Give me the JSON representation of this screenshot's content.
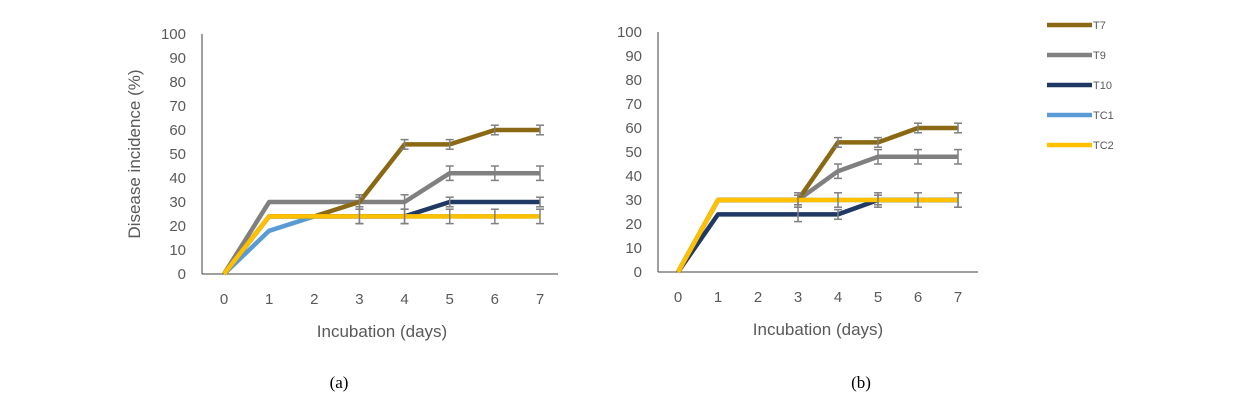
{
  "chart_data": [
    {
      "type": "line",
      "caption_label": "a",
      "xlabel": "Incubation (days)",
      "ylabel": "Disease incidence (%)",
      "x": [
        0,
        1,
        2,
        3,
        4,
        5,
        6,
        7
      ],
      "xlim": [
        0,
        7
      ],
      "ylim": [
        0,
        100
      ],
      "yticks": [
        0,
        10,
        20,
        30,
        40,
        50,
        60,
        70,
        80,
        90,
        100
      ],
      "grid": false,
      "series": [
        {
          "name": "TC1",
          "values": [
            0,
            18,
            24,
            24,
            24,
            24,
            24,
            24
          ],
          "error": [
            0,
            0,
            0,
            0,
            0,
            0,
            0,
            0
          ]
        },
        {
          "name": "T10",
          "values": [
            0,
            24,
            24,
            24,
            24,
            30,
            30,
            30
          ],
          "error": [
            0,
            0,
            0,
            3,
            3,
            2,
            0,
            2
          ]
        },
        {
          "name": "T9",
          "values": [
            0,
            30,
            30,
            30,
            30,
            42,
            42,
            42
          ],
          "error": [
            0,
            0,
            0,
            3,
            3,
            3,
            3,
            3
          ]
        },
        {
          "name": "T7",
          "values": [
            0,
            24,
            24,
            30,
            54,
            54,
            60,
            60
          ],
          "error": [
            0,
            0,
            0,
            2,
            2,
            2,
            2,
            2
          ]
        },
        {
          "name": "TC2",
          "values": [
            0,
            24,
            24,
            24,
            24,
            24,
            24,
            24
          ],
          "error": [
            0,
            0,
            0,
            3,
            3,
            3,
            3,
            3
          ]
        }
      ]
    },
    {
      "type": "line",
      "caption_label": "b",
      "xlabel": "Incubation (days)",
      "ylabel": "",
      "x": [
        0,
        1,
        2,
        3,
        4,
        5,
        6,
        7
      ],
      "xlim": [
        0,
        7
      ],
      "ylim": [
        0,
        100
      ],
      "yticks": [
        0,
        10,
        20,
        30,
        40,
        50,
        60,
        70,
        80,
        90,
        100
      ],
      "grid": false,
      "series": [
        {
          "name": "TC1",
          "values": [
            0,
            30,
            30,
            30,
            30,
            30,
            30,
            30
          ],
          "error": [
            0,
            0,
            0,
            0,
            0,
            0,
            0,
            0
          ]
        },
        {
          "name": "T10",
          "values": [
            0,
            24,
            24,
            24,
            24,
            30,
            30,
            30
          ],
          "error": [
            0,
            0,
            0,
            3,
            2,
            2,
            0,
            3
          ]
        },
        {
          "name": "T9",
          "values": [
            0,
            30,
            30,
            30,
            42,
            48,
            48,
            48
          ],
          "error": [
            0,
            0,
            0,
            2,
            3,
            3,
            3,
            3
          ]
        },
        {
          "name": "T7",
          "values": [
            0,
            30,
            30,
            30,
            54,
            54,
            60,
            60
          ],
          "error": [
            0,
            0,
            0,
            2,
            2,
            2,
            2,
            2
          ]
        },
        {
          "name": "TC2",
          "values": [
            0,
            30,
            30,
            30,
            30,
            30,
            30,
            30
          ],
          "error": [
            0,
            0,
            0,
            3,
            3,
            3,
            3,
            3
          ]
        }
      ]
    }
  ],
  "legend": {
    "placement": "right",
    "entries": [
      "T7",
      "T9",
      "T10",
      "TC1",
      "TC2"
    ]
  },
  "colors": {
    "T7": "#8B6914",
    "T9": "#808080",
    "T10": "#203864",
    "TC1": "#5B9BD5",
    "TC2": "#FFC000",
    "axis": "#404040",
    "error_bar": "#808080"
  },
  "captions": {
    "a": "(a)",
    "b": "(b)"
  }
}
